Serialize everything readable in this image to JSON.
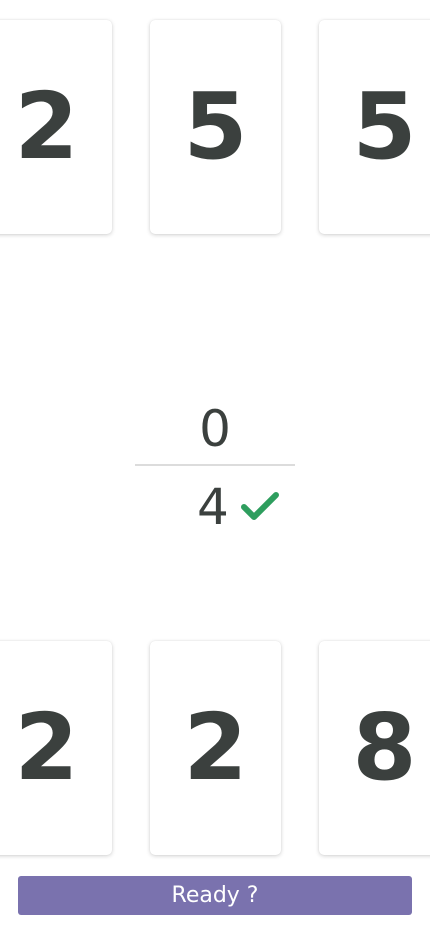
{
  "top_cards": [
    "2",
    "5",
    "5"
  ],
  "score": {
    "top_value": "0",
    "bottom_value": "4",
    "status_icon": "check-icon",
    "status_color": "#2e9e5e"
  },
  "bottom_cards": [
    "2",
    "2",
    "8"
  ],
  "ready_button": {
    "label": "Ready ?",
    "color": "#7a72ae"
  }
}
